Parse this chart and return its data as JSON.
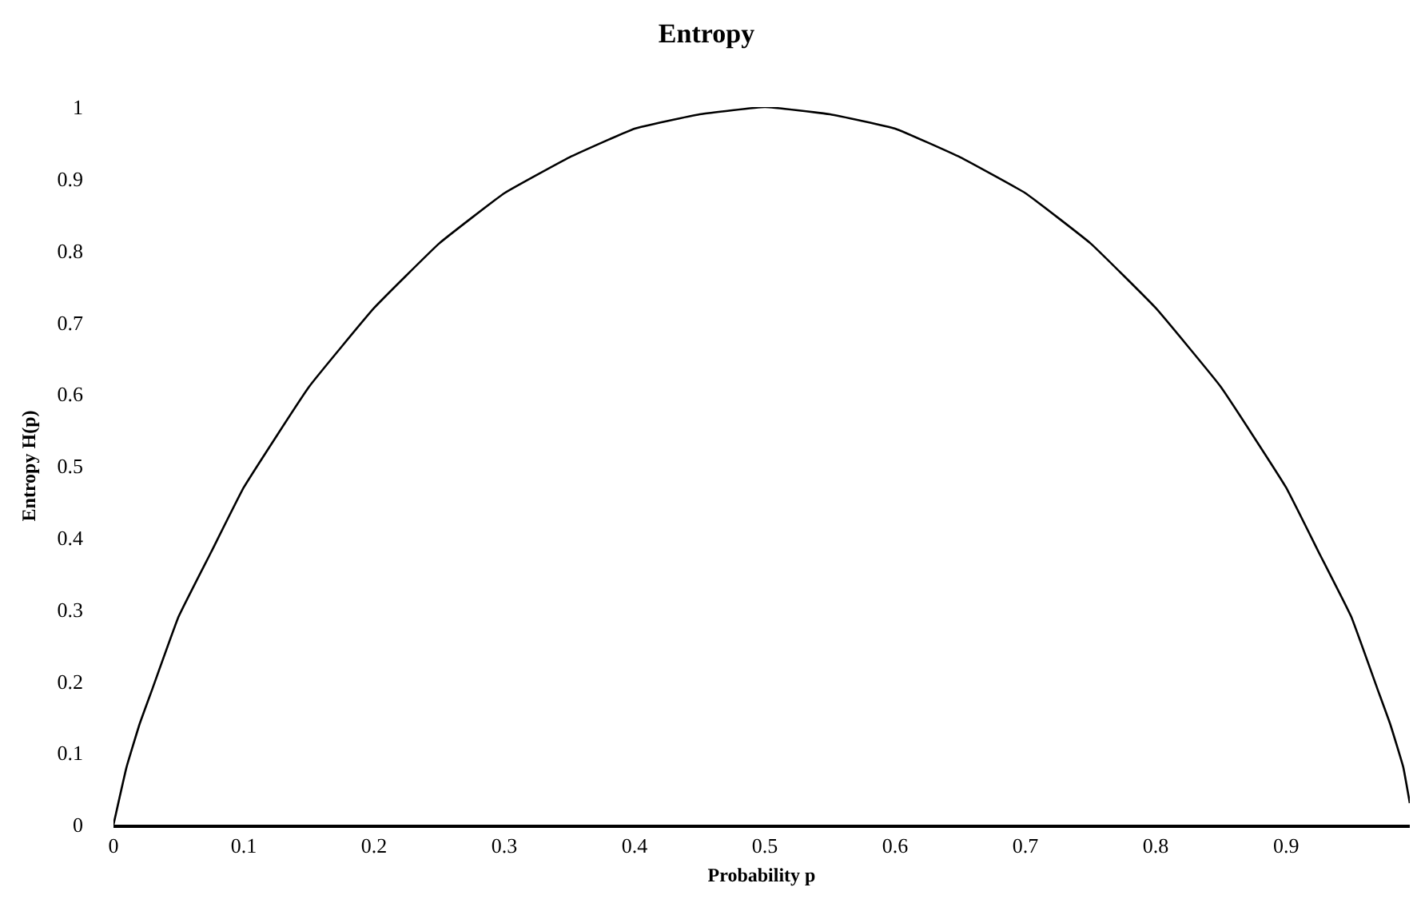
{
  "chart_data": {
    "type": "line",
    "title": "Entropy",
    "xlabel": "Probability p",
    "ylabel": "Entropy H(p)",
    "x": [
      0,
      0.01,
      0.02,
      0.03,
      0.05,
      0.075,
      0.1,
      0.15,
      0.2,
      0.25,
      0.3,
      0.35,
      0.4,
      0.45,
      0.5,
      0.55,
      0.6,
      0.65,
      0.7,
      0.75,
      0.8,
      0.85,
      0.9,
      0.925,
      0.95,
      0.97,
      0.98,
      0.99,
      0.995
    ],
    "series": [
      {
        "color": "#000000",
        "values": [
          0,
          0.08,
          0.14,
          0.19,
          0.29,
          0.38,
          0.47,
          0.61,
          0.72,
          0.81,
          0.88,
          0.93,
          0.97,
          0.99,
          1.0,
          0.99,
          0.97,
          0.93,
          0.88,
          0.81,
          0.72,
          0.61,
          0.47,
          0.38,
          0.29,
          0.19,
          0.14,
          0.08,
          0.03
        ]
      }
    ],
    "xlim": [
      0,
      0.995
    ],
    "xticks": [
      0,
      0.1,
      0.2,
      0.3,
      0.4,
      0.5,
      0.6,
      0.7,
      0.8,
      0.9
    ],
    "ylim": [
      0,
      1
    ],
    "yticks": [
      0,
      0.1,
      0.2,
      0.3,
      0.4,
      0.5,
      0.6,
      0.7,
      0.8,
      0.9,
      1
    ],
    "marker": "none",
    "line_style": "solid"
  }
}
